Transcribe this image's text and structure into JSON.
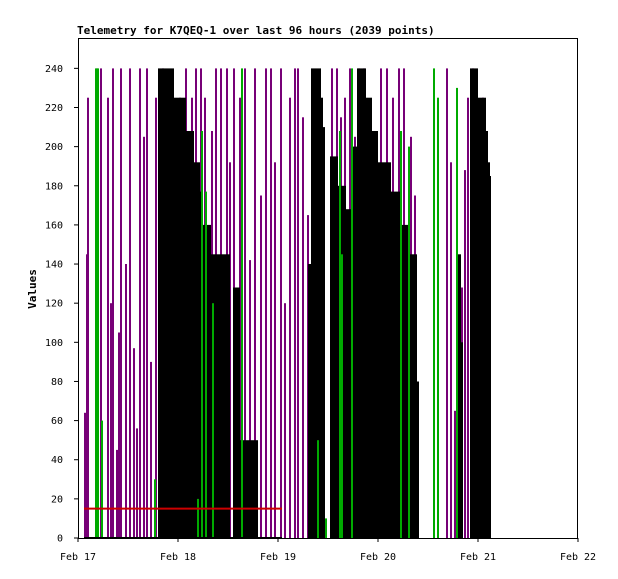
{
  "chart_data": {
    "type": "bar",
    "title": "Telemetry for K7QEQ-1 over last 96 hours (2039 points)",
    "xlabel": "",
    "ylabel": "Values",
    "x_ticks": [
      "Feb 17",
      "Feb 18",
      "Feb 19",
      "Feb 20",
      "Feb 21",
      "Feb 22"
    ],
    "xlim_days": [
      0,
      5
    ],
    "y_ticks": [
      0,
      20,
      40,
      60,
      80,
      100,
      120,
      140,
      160,
      180,
      200,
      220,
      240
    ],
    "ylim": [
      0,
      255
    ],
    "grid": false,
    "legend": "none",
    "colors": {
      "purple": "#770077",
      "green": "#00aa00",
      "black": "#000000",
      "red": "#cc0000"
    },
    "reference_line": {
      "value": 15,
      "x_start": 0.06,
      "x_end": 2.04,
      "color": "red"
    },
    "series": [
      {
        "color": "purple",
        "points": [
          [
            0.07,
            64
          ],
          [
            0.09,
            145
          ],
          [
            0.1,
            225
          ],
          [
            0.19,
            240
          ],
          [
            0.23,
            240
          ],
          [
            0.3,
            225
          ],
          [
            0.33,
            120
          ],
          [
            0.35,
            240
          ],
          [
            0.39,
            45
          ],
          [
            0.41,
            105
          ],
          [
            0.43,
            240
          ],
          [
            0.48,
            140
          ],
          [
            0.52,
            240
          ],
          [
            0.56,
            97
          ],
          [
            0.59,
            56
          ],
          [
            0.62,
            240
          ],
          [
            0.66,
            205
          ],
          [
            0.69,
            240
          ],
          [
            0.73,
            90
          ],
          [
            0.78,
            225
          ],
          [
            0.85,
            240
          ],
          [
            1.02,
            225
          ],
          [
            1.08,
            240
          ],
          [
            1.14,
            225
          ],
          [
            1.18,
            240
          ],
          [
            1.23,
            240
          ],
          [
            1.27,
            225
          ],
          [
            1.34,
            208
          ],
          [
            1.38,
            240
          ],
          [
            1.43,
            240
          ],
          [
            1.49,
            240
          ],
          [
            1.52,
            192
          ],
          [
            1.56,
            240
          ],
          [
            1.62,
            225
          ],
          [
            1.67,
            240
          ],
          [
            1.72,
            142
          ],
          [
            1.77,
            240
          ],
          [
            1.83,
            175
          ],
          [
            1.88,
            240
          ],
          [
            1.93,
            240
          ],
          [
            1.97,
            192
          ],
          [
            2.03,
            240
          ],
          [
            2.07,
            120
          ],
          [
            2.12,
            225
          ],
          [
            2.17,
            240
          ],
          [
            2.2,
            240
          ],
          [
            2.25,
            215
          ],
          [
            2.3,
            165
          ],
          [
            2.34,
            145
          ],
          [
            2.38,
            120
          ],
          [
            2.42,
            205
          ],
          [
            2.46,
            190
          ],
          [
            2.54,
            240
          ],
          [
            2.59,
            240
          ],
          [
            2.63,
            215
          ],
          [
            2.67,
            225
          ],
          [
            2.72,
            240
          ],
          [
            2.77,
            205
          ],
          [
            2.81,
            240
          ],
          [
            2.86,
            240
          ],
          [
            2.92,
            220
          ],
          [
            2.98,
            175
          ],
          [
            3.03,
            240
          ],
          [
            3.09,
            240
          ],
          [
            3.15,
            225
          ],
          [
            3.21,
            240
          ],
          [
            3.26,
            240
          ],
          [
            3.33,
            205
          ],
          [
            3.37,
            175
          ],
          [
            3.6,
            150
          ],
          [
            3.69,
            240
          ],
          [
            3.73,
            192
          ],
          [
            3.77,
            65
          ],
          [
            3.81,
            35
          ],
          [
            3.84,
            128
          ],
          [
            3.87,
            188
          ],
          [
            3.9,
            225
          ],
          [
            3.95,
            240
          ],
          [
            4.01,
            130
          ],
          [
            4.05,
            225
          ]
        ]
      },
      {
        "color": "green",
        "points": [
          [
            0.18,
            240
          ],
          [
            0.2,
            240
          ],
          [
            0.24,
            60
          ],
          [
            0.77,
            30
          ],
          [
            1.2,
            20
          ],
          [
            1.24,
            208
          ],
          [
            1.28,
            177
          ],
          [
            1.35,
            120
          ],
          [
            1.64,
            240
          ],
          [
            2.4,
            50
          ],
          [
            2.48,
            10
          ],
          [
            2.62,
            208
          ],
          [
            2.64,
            145
          ],
          [
            2.74,
            240
          ],
          [
            3.23,
            208
          ],
          [
            3.31,
            200
          ],
          [
            3.56,
            240
          ],
          [
            3.6,
            225
          ],
          [
            3.79,
            230
          ]
        ]
      },
      {
        "color": "black",
        "cycles": [
          {
            "x_range": [
              0.8,
              1.25
            ],
            "levels": [
              [
                0.8,
                240
              ],
              [
                0.96,
                225
              ],
              [
                1.08,
                208
              ],
              [
                1.16,
                192
              ],
              [
                1.22,
                177
              ]
            ]
          },
          {
            "x_range": [
              1.25,
              1.52
            ],
            "levels": [
              [
                1.25,
                160
              ],
              [
                1.33,
                145
              ]
            ]
          },
          {
            "x_range": [
              1.55,
              1.8
            ],
            "levels": [
              [
                1.55,
                128
              ],
              [
                1.62,
                50
              ]
            ]
          },
          {
            "x_range": [
              2.3,
              2.47
            ],
            "levels": [
              [
                2.3,
                140
              ],
              [
                2.33,
                240
              ],
              [
                2.43,
                225
              ],
              [
                2.45,
                210
              ]
            ]
          },
          {
            "x_range": [
              2.52,
              2.75
            ],
            "levels": [
              [
                2.52,
                195
              ],
              [
                2.6,
                180
              ],
              [
                2.68,
                168
              ]
            ]
          },
          {
            "x_range": [
              2.75,
              3.0
            ],
            "levels": [
              [
                2.75,
                200
              ],
              [
                2.79,
                240
              ],
              [
                2.88,
                225
              ],
              [
                2.94,
                208
              ]
            ]
          },
          {
            "x_range": [
              3.0,
              3.41
            ],
            "levels": [
              [
                3.0,
                192
              ],
              [
                3.13,
                177
              ],
              [
                3.24,
                160
              ],
              [
                3.3,
                145
              ],
              [
                3.39,
                80
              ]
            ]
          },
          {
            "x_range": [
              3.78,
              3.85
            ],
            "levels": [
              [
                3.78,
                128
              ],
              [
                3.8,
                145
              ],
              [
                3.83,
                100
              ]
            ]
          },
          {
            "x_range": [
              3.92,
              4.13
            ],
            "levels": [
              [
                3.92,
                240
              ],
              [
                4.0,
                225
              ],
              [
                4.08,
                208
              ],
              [
                4.1,
                192
              ],
              [
                4.12,
                185
              ]
            ]
          }
        ]
      }
    ]
  }
}
